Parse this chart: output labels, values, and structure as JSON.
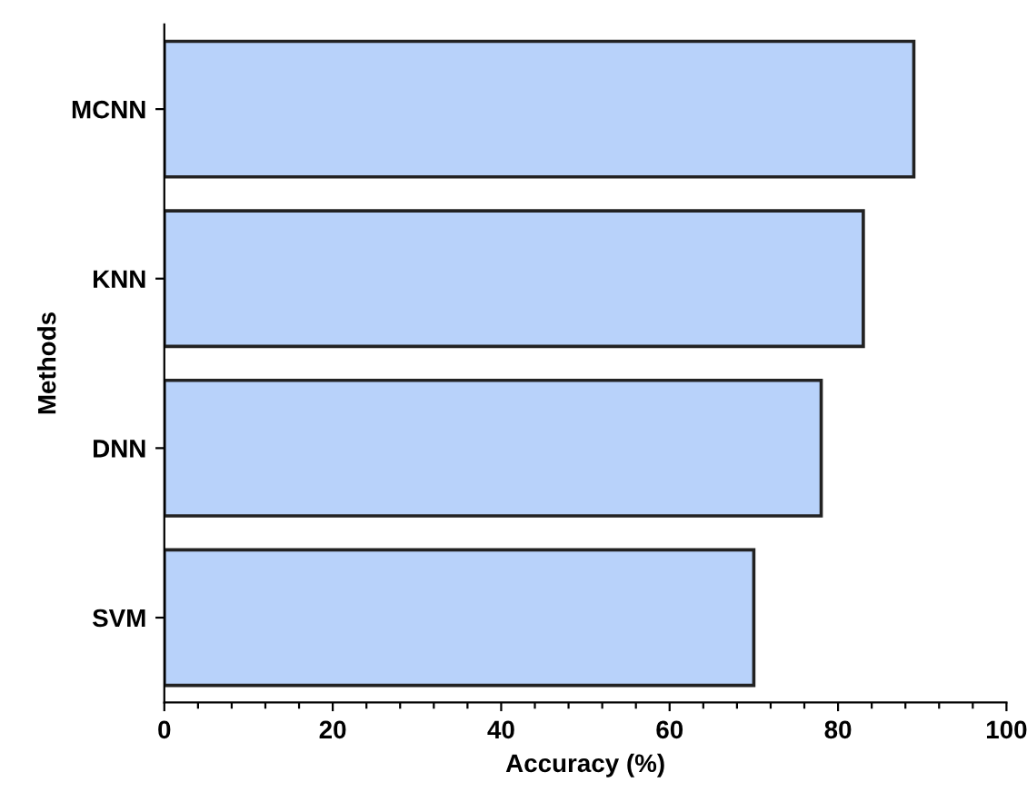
{
  "chart_data": {
    "type": "bar",
    "orientation": "horizontal",
    "xlabel": "Accuracy (%)",
    "ylabel": "Methods",
    "categories": [
      "MCNN",
      "KNN",
      "DNN",
      "SVM"
    ],
    "values": [
      89,
      83,
      78,
      70
    ],
    "color": "#b8d2fa",
    "xlim": [
      0,
      100
    ],
    "xticks": [
      0,
      {
        "value": 4,
        "label": null
      },
      {
        "value": 8,
        "label": null
      },
      {
        "value": 12,
        "label": null
      },
      {
        "value": 16,
        "label": null
      },
      20,
      {
        "value": 24,
        "label": null
      },
      {
        "value": 28,
        "label": null
      },
      {
        "value": 32,
        "label": null
      },
      {
        "value": 36,
        "label": null
      },
      40,
      {
        "value": 44,
        "label": null
      },
      {
        "value": 48,
        "label": null
      },
      {
        "value": 52,
        "label": null
      },
      {
        "value": 56,
        "label": null
      },
      60,
      {
        "value": 64,
        "label": null
      },
      {
        "value": 68,
        "label": null
      },
      {
        "value": 72,
        "label": null
      },
      {
        "value": 76,
        "label": null
      },
      80,
      {
        "value": 84,
        "label": null
      },
      {
        "value": 88,
        "label": null
      },
      {
        "value": 92,
        "label": null
      },
      {
        "value": 96,
        "label": null
      },
      100
    ],
    "grid": false
  }
}
